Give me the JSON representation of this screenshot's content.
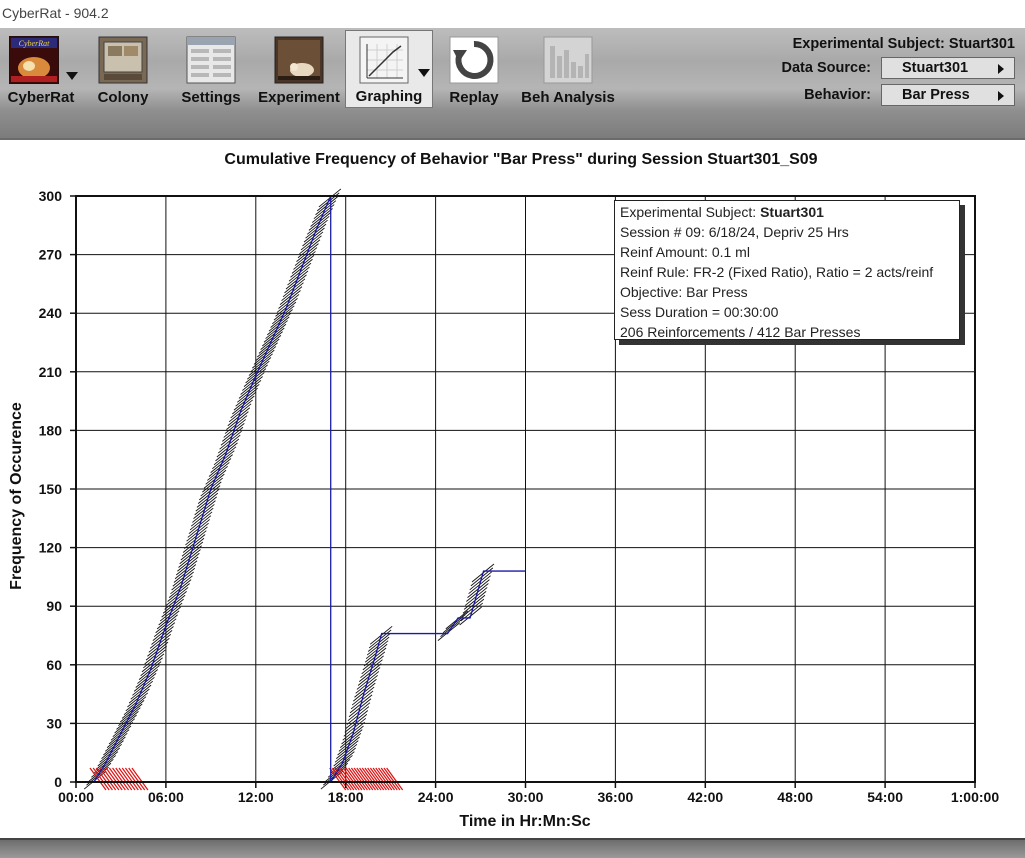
{
  "window": {
    "title": "CyberRat - 904.2"
  },
  "toolbar": {
    "tools": [
      {
        "label": "CyberRat",
        "icon": "cyberrat-logo-icon",
        "has_dropdown": true,
        "active": false
      },
      {
        "label": "Colony",
        "icon": "colony-icon",
        "has_dropdown": false,
        "active": false
      },
      {
        "label": "Settings",
        "icon": "settings-icon",
        "has_dropdown": false,
        "active": false
      },
      {
        "label": "Experiment",
        "icon": "experiment-icon",
        "has_dropdown": false,
        "active": false
      },
      {
        "label": "Graphing",
        "icon": "graphing-icon",
        "has_dropdown": true,
        "active": true
      },
      {
        "label": "Replay",
        "icon": "replay-icon",
        "has_dropdown": false,
        "active": false
      },
      {
        "label": "Beh Analysis",
        "icon": "beh-analysis-icon",
        "has_dropdown": false,
        "active": false
      }
    ],
    "subject_line": "Experimental Subject: Stuart301",
    "data_source_label": "Data Source:",
    "data_source_value": "Stuart301",
    "behavior_label": "Behavior:",
    "behavior_value": "Bar Press"
  },
  "infobox": {
    "subject_prefix": "Experimental Subject: ",
    "subject_name": "Stuart301",
    "session": "Session # 09: 6/18/24, Depriv 25 Hrs",
    "reinf_amount": "Reinf Amount: 0.1 ml",
    "reinf_rule": "Reinf Rule: FR-2 (Fixed Ratio), Ratio = 2 acts/reinf",
    "objective": "Objective: Bar Press",
    "duration": "Sess Duration = 00:30:00",
    "summary": "206 Reinforcements / 412 Bar Presses"
  },
  "chart_data": {
    "type": "line",
    "title": "Cumulative Frequency of Behavior \"Bar Press\" during Session Stuart301_S09",
    "xlabel": "Time in Hr:Mn:Sc",
    "ylabel": "Frequency of Occurence",
    "x_unit": "minutes",
    "xlim": [
      0,
      60
    ],
    "ylim": [
      0,
      300
    ],
    "x_ticks": [
      "00:00",
      "06:00",
      "12:00",
      "18:00",
      "24:00",
      "30:00",
      "36:00",
      "42:00",
      "48:00",
      "54:00",
      "1:00:00"
    ],
    "y_ticks": [
      0,
      30,
      60,
      90,
      120,
      150,
      180,
      210,
      240,
      270,
      300
    ],
    "grid": true,
    "series": [
      {
        "segment": "first pass (counter resets at 300)",
        "color": "#1a1aa6",
        "points": [
          [
            1.2,
            0
          ],
          [
            2.0,
            10
          ],
          [
            3.0,
            25
          ],
          [
            4.0,
            40
          ],
          [
            5.0,
            58
          ],
          [
            6.0,
            80
          ],
          [
            7.0,
            100
          ],
          [
            8.0,
            125
          ],
          [
            9.0,
            150
          ],
          [
            10.0,
            168
          ],
          [
            11.0,
            190
          ],
          [
            12.0,
            208
          ],
          [
            13.0,
            225
          ],
          [
            14.0,
            242
          ],
          [
            15.0,
            262
          ],
          [
            16.0,
            282
          ],
          [
            17.0,
            300
          ]
        ]
      },
      {
        "segment": "reset line",
        "color": "#1a1aa6",
        "points": [
          [
            17.0,
            300
          ],
          [
            17.0,
            0
          ]
        ]
      },
      {
        "segment": "second pass",
        "color": "#1a1aa6",
        "points": [
          [
            17.0,
            0
          ],
          [
            17.8,
            10
          ],
          [
            18.5,
            25
          ],
          [
            19.2,
            45
          ],
          [
            20.0,
            65
          ],
          [
            20.4,
            76
          ],
          [
            24.8,
            76
          ],
          [
            25.5,
            84
          ],
          [
            26.3,
            84
          ],
          [
            27.2,
            108
          ],
          [
            30.0,
            108
          ]
        ]
      }
    ],
    "response_marks": "black diagonal hatch at each bar press along the record",
    "reinforcement_marks": "red diagonal marks at baseline near 00:00–04:00 and 17:00–21:00"
  }
}
